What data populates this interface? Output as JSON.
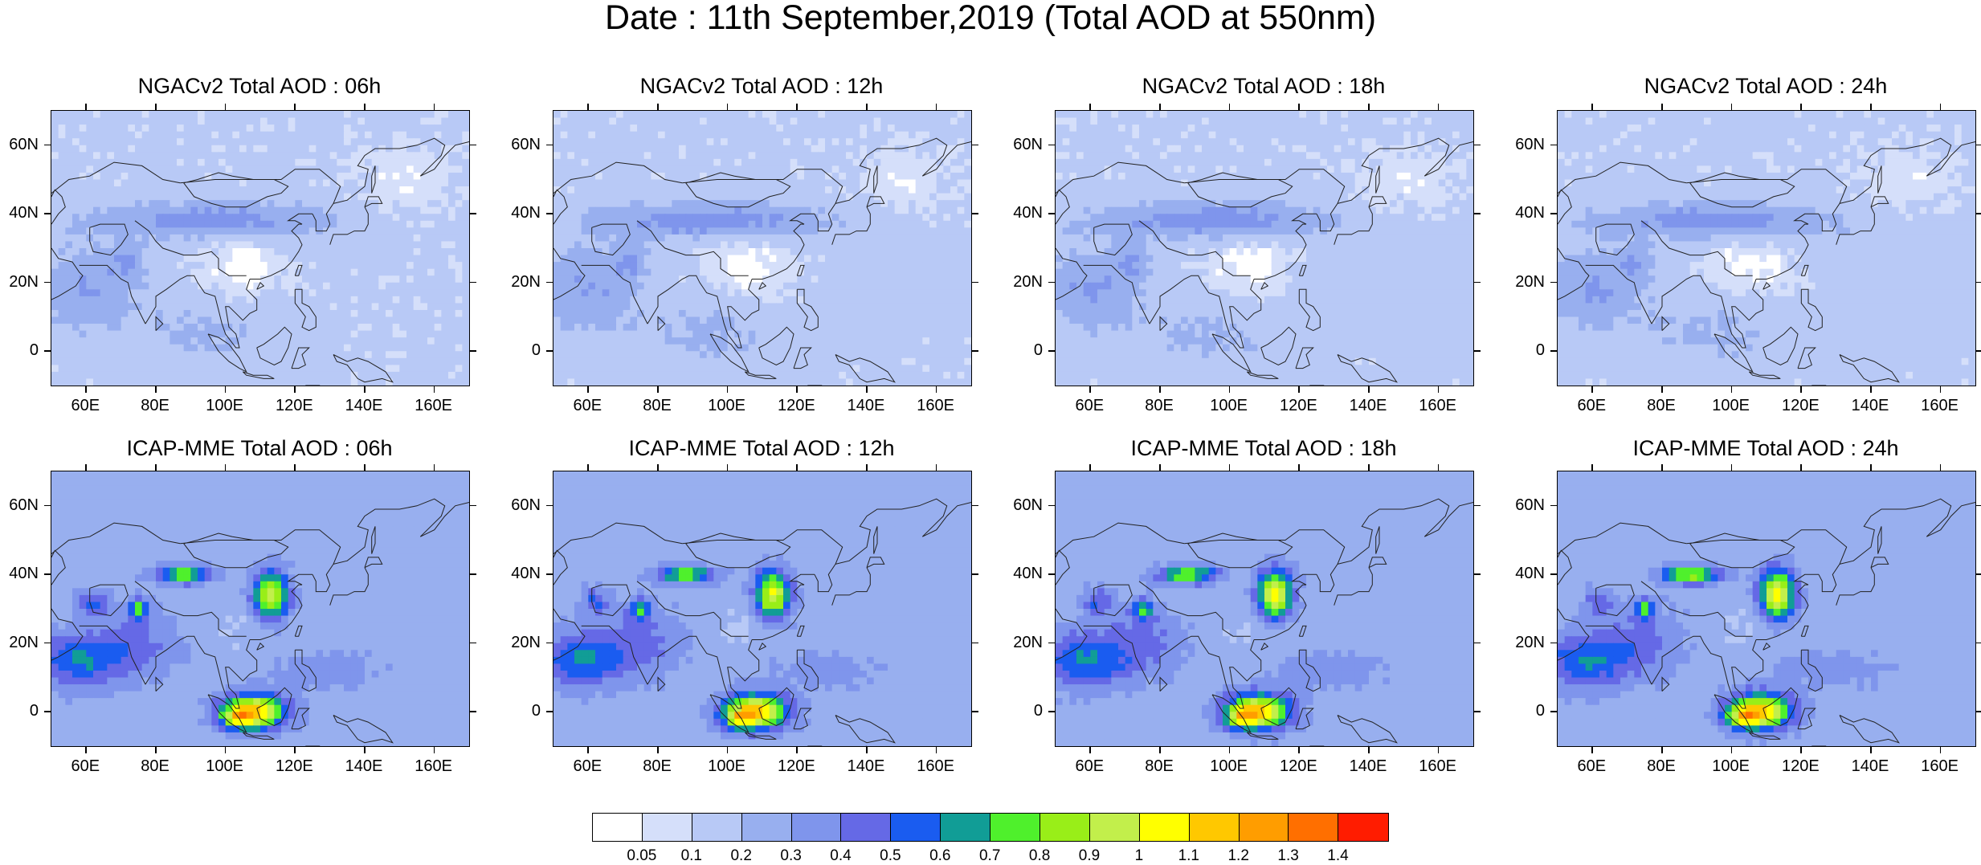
{
  "title": "Date : 11th September,2019 (Total AOD at 550nm)",
  "panels": [
    {
      "title": "NGACv2 Total AOD : 06h",
      "model": "NGACv2",
      "hour": "06h"
    },
    {
      "title": "NGACv2 Total AOD : 12h",
      "model": "NGACv2",
      "hour": "12h"
    },
    {
      "title": "NGACv2 Total AOD : 18h",
      "model": "NGACv2",
      "hour": "18h"
    },
    {
      "title": "NGACv2 Total AOD : 24h",
      "model": "NGACv2",
      "hour": "24h"
    },
    {
      "title": "ICAP-MME Total AOD : 06h",
      "model": "ICAP-MME",
      "hour": "06h"
    },
    {
      "title": "ICAP-MME Total AOD : 12h",
      "model": "ICAP-MME",
      "hour": "12h"
    },
    {
      "title": "ICAP-MME Total AOD : 18h",
      "model": "ICAP-MME",
      "hour": "18h"
    },
    {
      "title": "ICAP-MME Total AOD : 24h",
      "model": "ICAP-MME",
      "hour": "24h"
    }
  ],
  "axes": {
    "lat_ticks": [
      "60N",
      "40N",
      "20N",
      "0"
    ],
    "lon_ticks": [
      "60E",
      "80E",
      "100E",
      "120E",
      "140E",
      "160E"
    ]
  },
  "colorbar": {
    "colors": [
      "#ffffff",
      "#d5dffa",
      "#b8c9f6",
      "#98afef",
      "#7f95ec",
      "#6569e6",
      "#1a5cf0",
      "#119d96",
      "#4ff02c",
      "#99ee18",
      "#c2ef4b",
      "#ffff00",
      "#ffc800",
      "#ff9d00",
      "#ff6f00",
      "#ff1c00"
    ],
    "labels": [
      "0.05",
      "0.1",
      "0.2",
      "0.3",
      "0.4",
      "0.5",
      "0.6",
      "0.7",
      "0.8",
      "0.9",
      "1",
      "1.1",
      "1.2",
      "1.3",
      "1.4"
    ]
  }
}
